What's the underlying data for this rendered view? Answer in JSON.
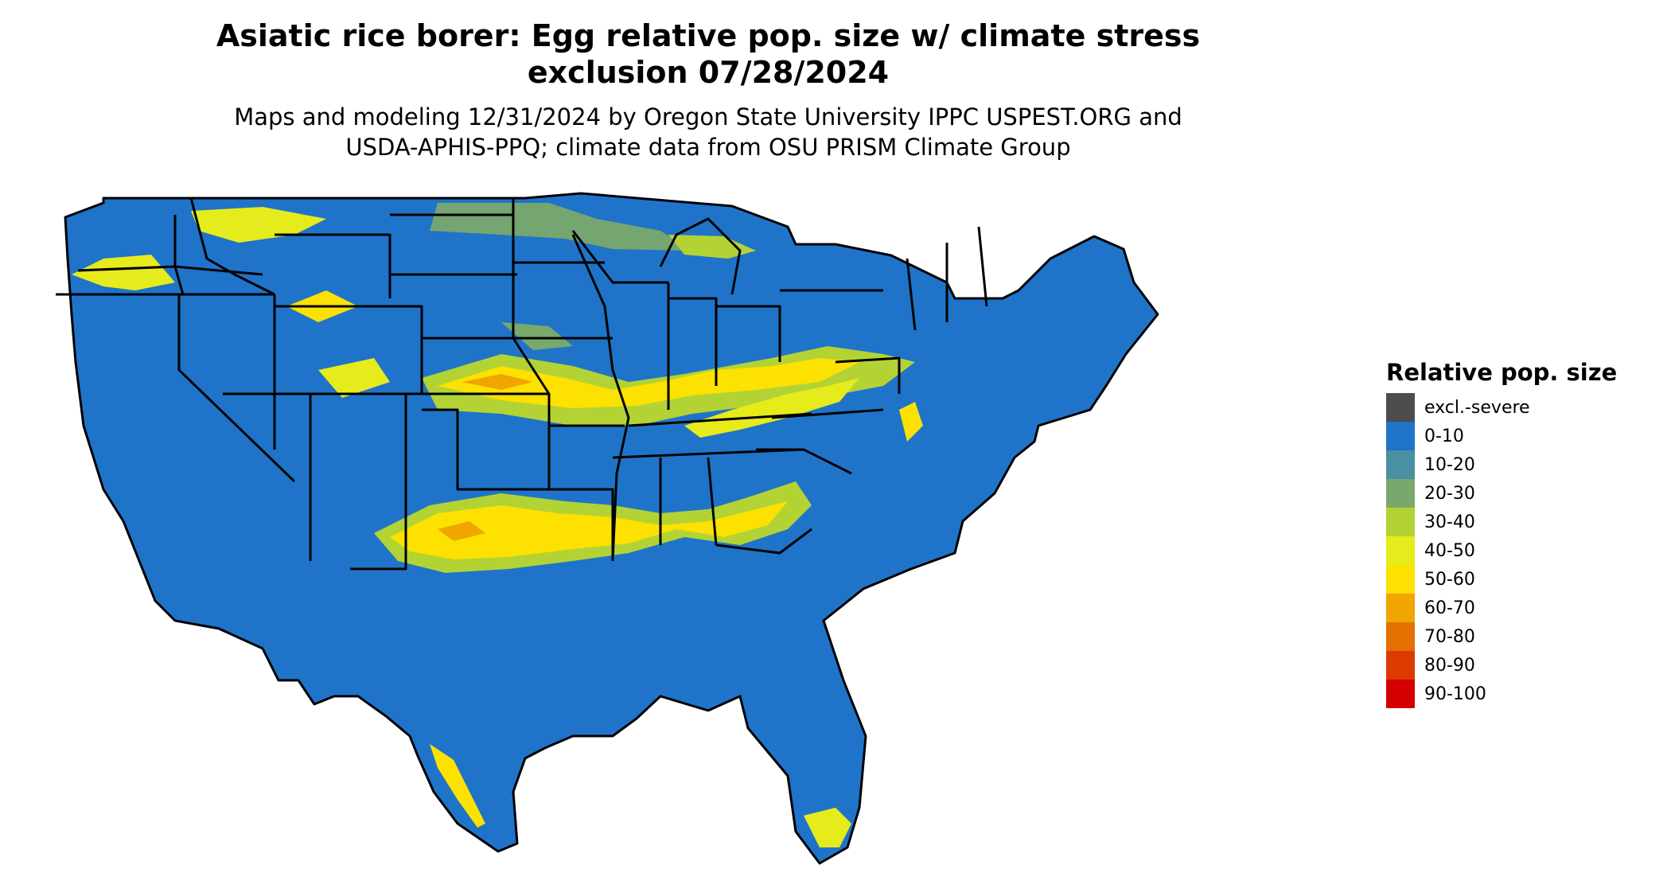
{
  "title_line1": "Asiatic rice borer: Egg relative pop. size w/ climate stress",
  "title_line2": "exclusion 07/28/2024",
  "subtitle_line1": "Maps and modeling 12/31/2024 by Oregon State University IPPC USPEST.ORG and",
  "subtitle_line2": "USDA-APHIS-PPQ; climate data from OSU PRISM Climate Group",
  "legend": {
    "title": "Relative pop. size",
    "items": [
      {
        "label": "excl.-severe",
        "color": "#4d4d4d"
      },
      {
        "label": "0-10",
        "color": "#1f74c9"
      },
      {
        "label": "10-20",
        "color": "#4a8fa2"
      },
      {
        "label": "20-30",
        "color": "#7aa86c"
      },
      {
        "label": "30-40",
        "color": "#b3d334"
      },
      {
        "label": "40-50",
        "color": "#e6eb1b"
      },
      {
        "label": "50-60",
        "color": "#fde100"
      },
      {
        "label": "60-70",
        "color": "#f0a500"
      },
      {
        "label": "70-80",
        "color": "#e37000"
      },
      {
        "label": "80-90",
        "color": "#dc3b00"
      },
      {
        "label": "90-100",
        "color": "#d40000"
      }
    ]
  }
}
